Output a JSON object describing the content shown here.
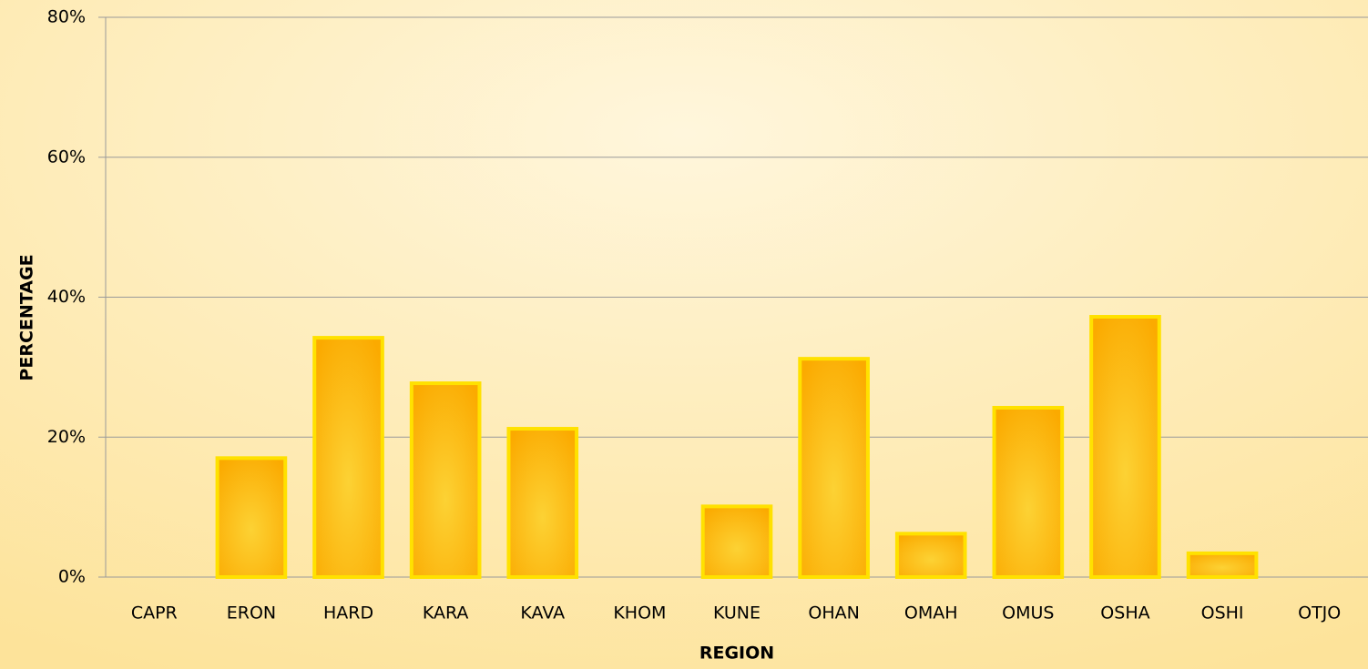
{
  "chart_data": {
    "type": "bar",
    "x_label": "REGION",
    "y_label": "PERCENTAGE",
    "categories": [
      "CAPR",
      "ERON",
      "HARD",
      "KARA",
      "KAVA",
      "KHOM",
      "KUNE",
      "OHAN",
      "OMAH",
      "OMUS",
      "OSHA",
      "OSHI",
      "OTJO"
    ],
    "values": [
      0,
      17.0,
      34.2,
      27.7,
      21.2,
      0,
      10.1,
      31.2,
      6.2,
      24.2,
      37.2,
      3.4,
      0
    ],
    "color": "#fbb414",
    "edge_color": "#ffe100",
    "ylim": [
      0,
      80
    ],
    "yticks": [
      {
        "value": 0,
        "label": "0%"
      },
      {
        "value": 20,
        "label": "20%"
      },
      {
        "value": 40,
        "label": "40%"
      },
      {
        "value": 60,
        "label": "60%"
      },
      {
        "value": 80,
        "label": "80%"
      }
    ],
    "grid": true
  }
}
